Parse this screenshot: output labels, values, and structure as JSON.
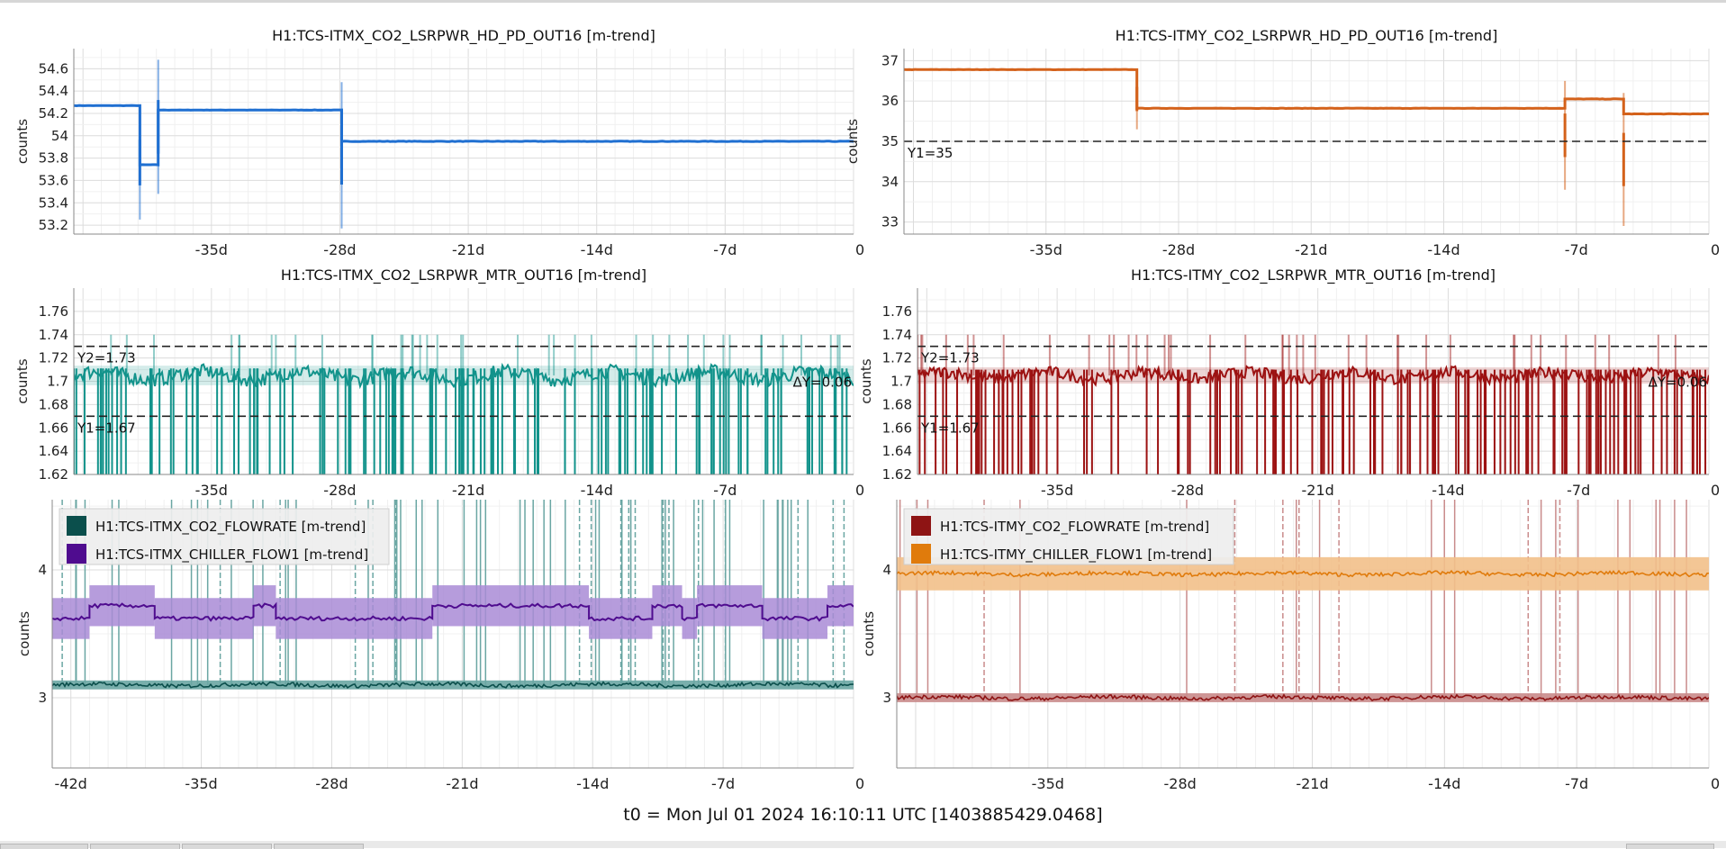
{
  "footer": {
    "t0": "t0 = Mon Jul 01 2024 16:10:11 UTC [1403885429.0468]"
  },
  "chart_data": [
    {
      "type": "line",
      "id": "itmx_hd_pd",
      "title": "H1:TCS-ITMX_CO2_LSRPWR_HD_PD_OUT16 [m-trend]",
      "ylabel": "counts",
      "xlim": [
        -42.5,
        0
      ],
      "ylim": [
        53.12,
        54.78
      ],
      "x_ticks": [
        -35,
        -28,
        -21,
        -14,
        -7,
        0
      ],
      "x_tick_labels": [
        "-35d",
        "-28d",
        "-21d",
        "-14d",
        "-7d",
        "0"
      ],
      "y_ticks": [
        53.2,
        53.4,
        53.6,
        53.8,
        54,
        54.2,
        54.4,
        54.6
      ],
      "y_tick_labels": [
        "53.2",
        "53.4",
        "53.6",
        "53.8",
        "54",
        "54.2",
        "54.4",
        "54.6"
      ],
      "series": [
        {
          "color": "#1f6fd1",
          "steps": [
            [
              -42.5,
              54.27
            ],
            [
              -38.9,
              53.74
            ],
            [
              -37.9,
              54.23
            ],
            [
              -27.9,
              53.95
            ],
            [
              0,
              53.95
            ]
          ],
          "spikes": [
            [
              -38.9,
              53.25,
              54.27
            ],
            [
              -37.9,
              53.48,
              54.68
            ],
            [
              -27.9,
              53.17,
              54.48
            ]
          ]
        }
      ]
    },
    {
      "type": "line",
      "id": "itmy_hd_pd",
      "title": "H1:TCS-ITMY_CO2_LSRPWR_HD_PD_OUT16 [m-trend]",
      "ylabel": "counts",
      "xlim": [
        -42.5,
        0
      ],
      "ylim": [
        32.7,
        37.3
      ],
      "x_ticks": [
        -35,
        -28,
        -21,
        -14,
        -7,
        0
      ],
      "x_tick_labels": [
        "-35d",
        "-28d",
        "-21d",
        "-14d",
        "-7d",
        "0"
      ],
      "y_ticks": [
        33,
        34,
        35,
        36,
        37
      ],
      "y_tick_labels": [
        "33",
        "34",
        "35",
        "36",
        "37"
      ],
      "hlines": [
        {
          "y": 35,
          "label": "Y1=35"
        }
      ],
      "series": [
        {
          "color": "#d4621b",
          "steps": [
            [
              -42.5,
              36.78
            ],
            [
              -30.2,
              35.82
            ],
            [
              -7.6,
              36.05
            ],
            [
              -4.5,
              35.68
            ],
            [
              0,
              35.68
            ]
          ],
          "spikes": [
            [
              -30.2,
              35.3,
              36.8
            ],
            [
              -7.6,
              33.8,
              36.5
            ],
            [
              -4.5,
              32.9,
              36.2
            ]
          ]
        }
      ]
    },
    {
      "type": "line",
      "id": "itmx_mtr",
      "title": "H1:TCS-ITMX_CO2_LSRPWR_MTR_OUT16 [m-trend]",
      "ylabel": "counts",
      "xlim": [
        -42.5,
        0
      ],
      "ylim": [
        1.62,
        1.78
      ],
      "x_ticks": [
        -35,
        -28,
        -21,
        -14,
        -7,
        0
      ],
      "x_tick_labels": [
        "-35d",
        "-28d",
        "-21d",
        "-14d",
        "-7d",
        "0"
      ],
      "y_ticks": [
        1.62,
        1.64,
        1.66,
        1.68,
        1.7,
        1.72,
        1.74,
        1.76
      ],
      "y_tick_labels": [
        "1.62",
        "1.64",
        "1.66",
        "1.68",
        "1.7",
        "1.72",
        "1.74",
        "1.76"
      ],
      "hlines": [
        {
          "y": 1.73,
          "label": "Y2=1.73"
        },
        {
          "y": 1.67,
          "label": "Y1=1.67"
        }
      ],
      "delta_label": "ΔY=0.06",
      "series": [
        {
          "color": "#12938b",
          "level": 1.705,
          "band": 0.006,
          "drop_to": 1.62
        }
      ]
    },
    {
      "type": "line",
      "id": "itmy_mtr",
      "title": "H1:TCS-ITMY_CO2_LSRPWR_MTR_OUT16 [m-trend]",
      "ylabel": "counts",
      "xlim": [
        -42.5,
        0
      ],
      "ylim": [
        1.62,
        1.78
      ],
      "x_ticks": [
        -35,
        -28,
        -21,
        -14,
        -7,
        0
      ],
      "x_tick_labels": [
        "-35d",
        "-28d",
        "-21d",
        "-14d",
        "-7d",
        "0"
      ],
      "y_ticks": [
        1.62,
        1.64,
        1.66,
        1.68,
        1.7,
        1.72,
        1.74,
        1.76
      ],
      "y_tick_labels": [
        "1.62",
        "1.64",
        "1.66",
        "1.68",
        "1.7",
        "1.72",
        "1.74",
        "1.76"
      ],
      "hlines": [
        {
          "y": 1.73,
          "label": "Y2=1.73"
        },
        {
          "y": 1.67,
          "label": "Y1=1.67"
        }
      ],
      "delta_label": "ΔY=0.06",
      "series": [
        {
          "color": "#9c1212",
          "level": 1.705,
          "band": 0.005,
          "drop_to": 1.62
        }
      ]
    },
    {
      "type": "line",
      "id": "itmx_flow",
      "ylabel": "counts",
      "xlim": [
        -43.0,
        0
      ],
      "ylim": [
        2.45,
        4.55
      ],
      "x_ticks": [
        -42,
        -35,
        -28,
        -21,
        -14,
        -7,
        0
      ],
      "x_tick_labels": [
        "-42d",
        "-35d",
        "-28d",
        "-21d",
        "-14d",
        "-7d",
        "0"
      ],
      "y_ticks": [
        3,
        4
      ],
      "y_tick_labels": [
        "3",
        "4"
      ],
      "legend": "top-left",
      "series": [
        {
          "name": "H1:TCS-ITMX_CO2_FLOWRATE [m-trend]",
          "color": "#0b4f4c",
          "band_color": "#6aa6a3",
          "level": 3.1,
          "spike_to": 4.55
        },
        {
          "name": "H1:TCS-ITMX_CHILLER_FLOW1 [m-trend]",
          "color": "#4f0c8f",
          "band_color": "#a98bd6",
          "steps": [
            [
              -43.0,
              3.62
            ],
            [
              -41.0,
              3.72
            ],
            [
              -37.5,
              3.62
            ],
            [
              -32.2,
              3.72
            ],
            [
              -31.0,
              3.62
            ],
            [
              -22.6,
              3.72
            ],
            [
              -14.2,
              3.62
            ],
            [
              -10.8,
              3.72
            ],
            [
              -9.2,
              3.62
            ],
            [
              -8.4,
              3.72
            ],
            [
              -4.9,
              3.62
            ],
            [
              -1.4,
              3.72
            ],
            [
              0,
              3.72
            ]
          ]
        }
      ]
    },
    {
      "type": "line",
      "id": "itmy_flow",
      "ylabel": "counts",
      "xlim": [
        -43.0,
        0
      ],
      "ylim": [
        2.45,
        4.55
      ],
      "x_ticks": [
        -35,
        -28,
        -21,
        -14,
        -7,
        0
      ],
      "x_tick_labels": [
        "-35d",
        "-28d",
        "-21d",
        "-14d",
        "-7d",
        "0"
      ],
      "legend": "top-left",
      "y_ticks": [
        3,
        4
      ],
      "y_tick_labels": [
        "3",
        "4"
      ],
      "series": [
        {
          "name": "H1:TCS-ITMY_CO2_FLOWRATE [m-trend]",
          "color": "#8e1414",
          "band_color": "#c98b8b",
          "level": 3.0,
          "spike_to": 4.55
        },
        {
          "name": "H1:TCS-ITMY_CHILLER_FLOW1 [m-trend]",
          "color": "#e07b0c",
          "band_color": "#f2c08a",
          "level": 3.97
        }
      ]
    }
  ]
}
